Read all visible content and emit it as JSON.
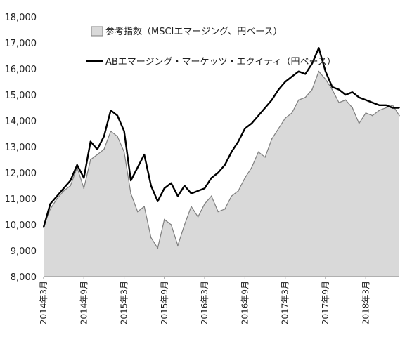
{
  "chart_data": {
    "type": "area",
    "title": "",
    "xlabel": "",
    "ylabel": "",
    "ylim": [
      8000,
      18000
    ],
    "yticks": [
      "8,000",
      "9,000",
      "10,000",
      "11,000",
      "12,000",
      "13,000",
      "14,000",
      "15,000",
      "16,000",
      "17,000",
      "18,000"
    ],
    "xticks": [
      "2014年3月",
      "2014年9月",
      "2015年3月",
      "2015年9月",
      "2016年3月",
      "2016年9月",
      "2017年3月",
      "2017年9月",
      "2018年3月"
    ],
    "grid": false,
    "legend_position": "top-left",
    "x_months": [
      0,
      1,
      2,
      3,
      4,
      5,
      6,
      7,
      8,
      9,
      10,
      11,
      12,
      13,
      14,
      15,
      16,
      17,
      18,
      19,
      20,
      21,
      22,
      23,
      24,
      25,
      26,
      27,
      28,
      29,
      30,
      31,
      32,
      33,
      34,
      35,
      36,
      37,
      38,
      39,
      40,
      41,
      42,
      43,
      44,
      45,
      46,
      47,
      48,
      49,
      50,
      51,
      52,
      53
    ],
    "series": [
      {
        "name": "参考指数（MSCIエマージング、円ベース）",
        "kind": "area",
        "color": "#d9d9d9",
        "stroke": "#7f7f7f",
        "values": [
          9950,
          10600,
          11000,
          11300,
          11500,
          12200,
          11400,
          12500,
          12700,
          12900,
          13600,
          13400,
          12800,
          11200,
          10500,
          10700,
          9500,
          9100,
          10200,
          10000,
          9200,
          10000,
          10700,
          10300,
          10800,
          11100,
          10500,
          10600,
          11100,
          11300,
          11800,
          12200,
          12800,
          12600,
          13300,
          13700,
          14100,
          14300,
          14800,
          14900,
          15200,
          15900,
          15600,
          15200,
          14700,
          14800,
          14500,
          13900,
          14300,
          14200,
          14400,
          14500,
          14600,
          14200
        ]
      },
      {
        "name": "ABエマージング・マーケッツ・エクイティ（円ベース）",
        "kind": "line",
        "color": "#000000",
        "values": [
          9900,
          10800,
          11100,
          11400,
          11700,
          12300,
          11800,
          13200,
          12900,
          13400,
          14400,
          14200,
          13600,
          11700,
          12200,
          12700,
          11500,
          10900,
          11400,
          11600,
          11100,
          11500,
          11200,
          11300,
          11400,
          11800,
          12000,
          12300,
          12800,
          13200,
          13700,
          13900,
          14200,
          14500,
          14800,
          15200,
          15500,
          15700,
          15900,
          15800,
          16200,
          16800,
          15900,
          15300,
          15200,
          15000,
          15100,
          14900,
          14800,
          14700,
          14600,
          14600,
          14500,
          14500
        ]
      }
    ]
  }
}
